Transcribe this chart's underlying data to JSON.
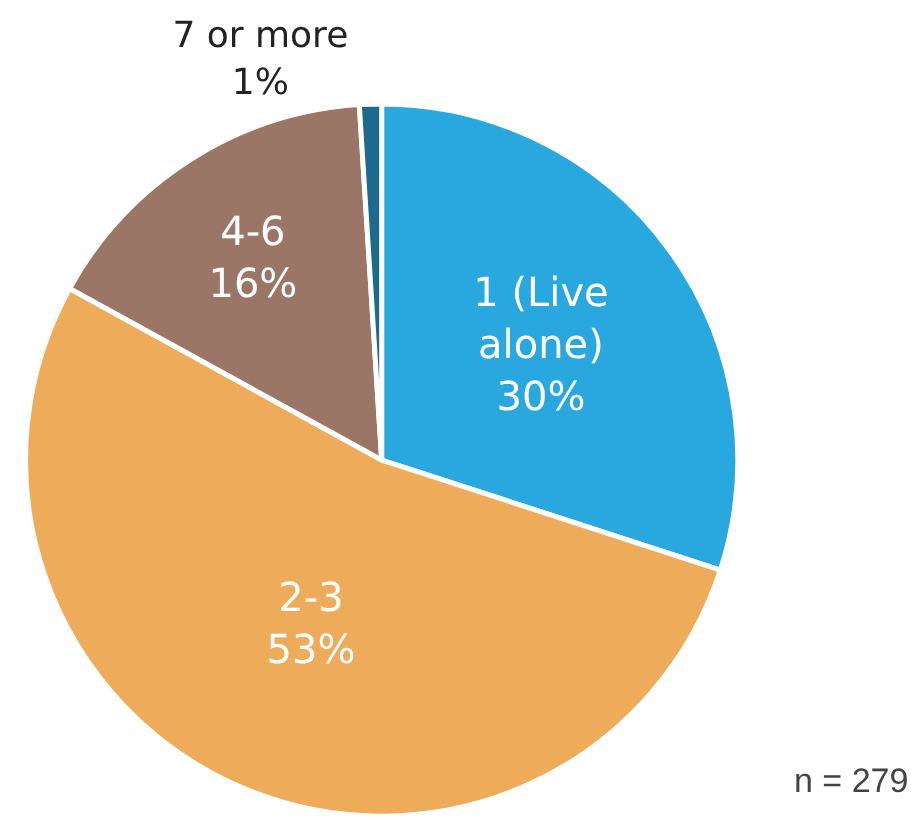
{
  "chart_data": {
    "type": "pie",
    "categories": [
      "1 (Live alone)",
      "2-3",
      "4-6",
      "7 or more"
    ],
    "values": [
      30,
      53,
      16,
      1
    ],
    "value_labels": [
      "30%",
      "53%",
      "16%",
      "1%"
    ],
    "colors": [
      "#29a8e0",
      "#eeac5a",
      "#9b7565",
      "#1c6a8c"
    ],
    "annotations": [
      "n = 279"
    ],
    "legend": false
  }
}
